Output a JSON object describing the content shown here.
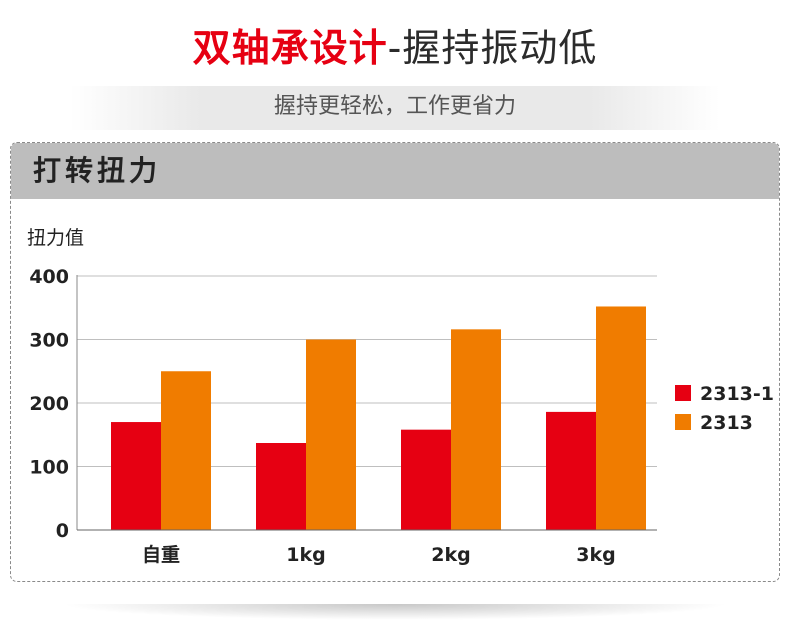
{
  "header": {
    "title_red": "双轴承设计",
    "title_rest": "-握持振动低",
    "subtitle": "握持更轻松，工作更省力"
  },
  "panel": {
    "title": "打转扭力"
  },
  "colors": {
    "series_1": "#e60012",
    "series_2": "#f07c00",
    "title_red": "#e60012"
  },
  "chart_data": {
    "type": "bar",
    "title": "打转扭力",
    "ylabel": "扭力值",
    "xlabel": "",
    "categories": [
      "自重",
      "1kg",
      "2kg",
      "3kg"
    ],
    "series": [
      {
        "name": "2313-1",
        "values": [
          170,
          137,
          158,
          186
        ]
      },
      {
        "name": "2313",
        "values": [
          250,
          300,
          316,
          352
        ]
      }
    ],
    "ylim": [
      0,
      400
    ],
    "yticks": [
      0,
      100,
      200,
      300,
      400
    ],
    "grid": true,
    "legend": "right"
  }
}
